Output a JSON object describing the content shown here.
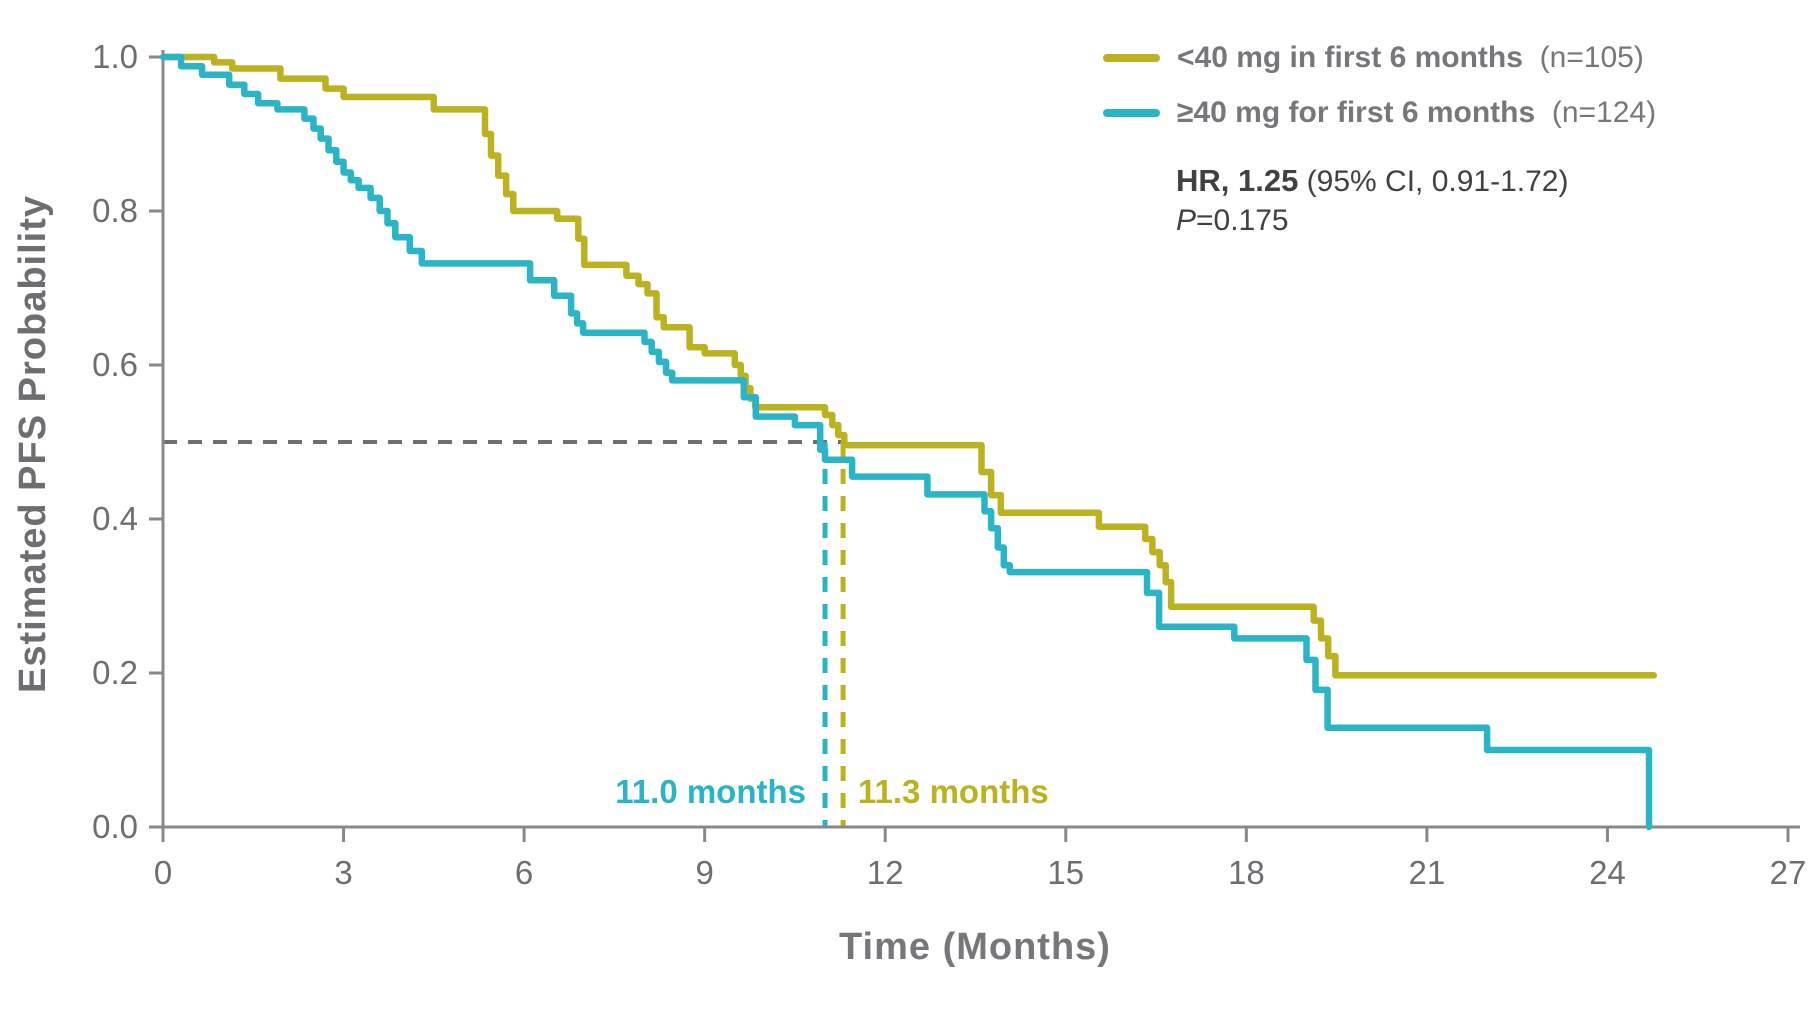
{
  "chart_data": {
    "type": "line",
    "subtype": "kaplan-meier-step",
    "title": "",
    "xlabel": "Time (Months)",
    "ylabel": "Estimated PFS Probability",
    "xlim": [
      0,
      27
    ],
    "ylim": [
      0.0,
      1.0
    ],
    "x_ticks": [
      0,
      3,
      6,
      9,
      12,
      15,
      18,
      21,
      24,
      27
    ],
    "y_ticks": [
      "1.0",
      "0.8",
      "0.6",
      "0.4",
      "0.2",
      "0.0"
    ],
    "grid": false,
    "legend_position": "top-right",
    "reference_line": {
      "y": 0.5,
      "color": "#6d6e71",
      "style": "dashed"
    },
    "stats": {
      "hr_bold": "HR, 1.25",
      "hr_ci": " (95% CI, 0.91-1.72)",
      "p_italic": "P",
      "p_rest": "=0.175"
    },
    "series": [
      {
        "name": "<40 mg in first 6 months",
        "n_label": "(n=105)",
        "color": "#BCB11E",
        "median_months": 11.3,
        "median_label": "11.3 months",
        "end_month": 24.77,
        "drop_to_zero": false,
        "steps": [
          [
            0,
            1.0
          ],
          [
            0.85,
            0.993
          ],
          [
            1.15,
            0.985
          ],
          [
            1.95,
            0.972
          ],
          [
            2.7,
            0.959
          ],
          [
            3.0,
            0.948
          ],
          [
            4.5,
            0.932
          ],
          [
            5.35,
            0.9
          ],
          [
            5.45,
            0.872
          ],
          [
            5.57,
            0.846
          ],
          [
            5.7,
            0.822
          ],
          [
            5.82,
            0.8
          ],
          [
            6.55,
            0.79
          ],
          [
            6.9,
            0.764
          ],
          [
            7.0,
            0.73
          ],
          [
            7.7,
            0.716
          ],
          [
            7.9,
            0.705
          ],
          [
            8.05,
            0.693
          ],
          [
            8.2,
            0.662
          ],
          [
            8.32,
            0.649
          ],
          [
            8.75,
            0.623
          ],
          [
            9.0,
            0.615
          ],
          [
            9.5,
            0.6
          ],
          [
            9.6,
            0.586
          ],
          [
            9.68,
            0.57
          ],
          [
            9.76,
            0.556
          ],
          [
            9.84,
            0.545
          ],
          [
            11.0,
            0.535
          ],
          [
            11.12,
            0.522
          ],
          [
            11.22,
            0.509
          ],
          [
            11.32,
            0.496
          ],
          [
            13.6,
            0.461
          ],
          [
            13.76,
            0.431
          ],
          [
            13.92,
            0.408
          ],
          [
            15.55,
            0.39
          ],
          [
            16.32,
            0.374
          ],
          [
            16.44,
            0.357
          ],
          [
            16.56,
            0.34
          ],
          [
            16.66,
            0.318
          ],
          [
            16.75,
            0.286
          ],
          [
            19.12,
            0.268
          ],
          [
            19.24,
            0.245
          ],
          [
            19.36,
            0.222
          ],
          [
            19.48,
            0.197
          ]
        ]
      },
      {
        "name": "≥40 mg for first 6 months",
        "n_label": "(n=124)",
        "color": "#29B5C7",
        "median_months": 11.0,
        "median_label": "11.0 months",
        "end_month": 24.69,
        "drop_to_zero": true,
        "steps": [
          [
            0,
            1.0
          ],
          [
            0.3,
            0.988
          ],
          [
            0.65,
            0.977
          ],
          [
            1.1,
            0.964
          ],
          [
            1.35,
            0.952
          ],
          [
            1.58,
            0.94
          ],
          [
            1.9,
            0.932
          ],
          [
            2.35,
            0.92
          ],
          [
            2.5,
            0.907
          ],
          [
            2.62,
            0.894
          ],
          [
            2.75,
            0.879
          ],
          [
            2.88,
            0.864
          ],
          [
            3.0,
            0.85
          ],
          [
            3.12,
            0.84
          ],
          [
            3.25,
            0.83
          ],
          [
            3.45,
            0.817
          ],
          [
            3.6,
            0.8
          ],
          [
            3.73,
            0.784
          ],
          [
            3.86,
            0.766
          ],
          [
            4.1,
            0.748
          ],
          [
            4.3,
            0.732
          ],
          [
            6.1,
            0.71
          ],
          [
            6.5,
            0.69
          ],
          [
            6.78,
            0.667
          ],
          [
            6.88,
            0.654
          ],
          [
            6.98,
            0.642
          ],
          [
            8.0,
            0.63
          ],
          [
            8.12,
            0.617
          ],
          [
            8.24,
            0.604
          ],
          [
            8.36,
            0.59
          ],
          [
            8.46,
            0.58
          ],
          [
            9.65,
            0.558
          ],
          [
            9.85,
            0.533
          ],
          [
            10.5,
            0.522
          ],
          [
            10.92,
            0.49
          ],
          [
            11.0,
            0.477
          ],
          [
            11.45,
            0.455
          ],
          [
            12.7,
            0.432
          ],
          [
            13.65,
            0.41
          ],
          [
            13.76,
            0.388
          ],
          [
            13.87,
            0.363
          ],
          [
            13.97,
            0.34
          ],
          [
            14.07,
            0.331
          ],
          [
            16.35,
            0.304
          ],
          [
            16.55,
            0.26
          ],
          [
            17.8,
            0.245
          ],
          [
            19.0,
            0.217
          ],
          [
            19.15,
            0.178
          ],
          [
            19.35,
            0.129
          ],
          [
            22.0,
            0.1
          ]
        ]
      }
    ],
    "colors": {
      "axis": "#87888b",
      "tick_text": "#6d6e71",
      "legend_text": "#76777b",
      "stats_text": "#414042",
      "reference_dash": "#6d6e71",
      "background": "#ffffff"
    }
  }
}
